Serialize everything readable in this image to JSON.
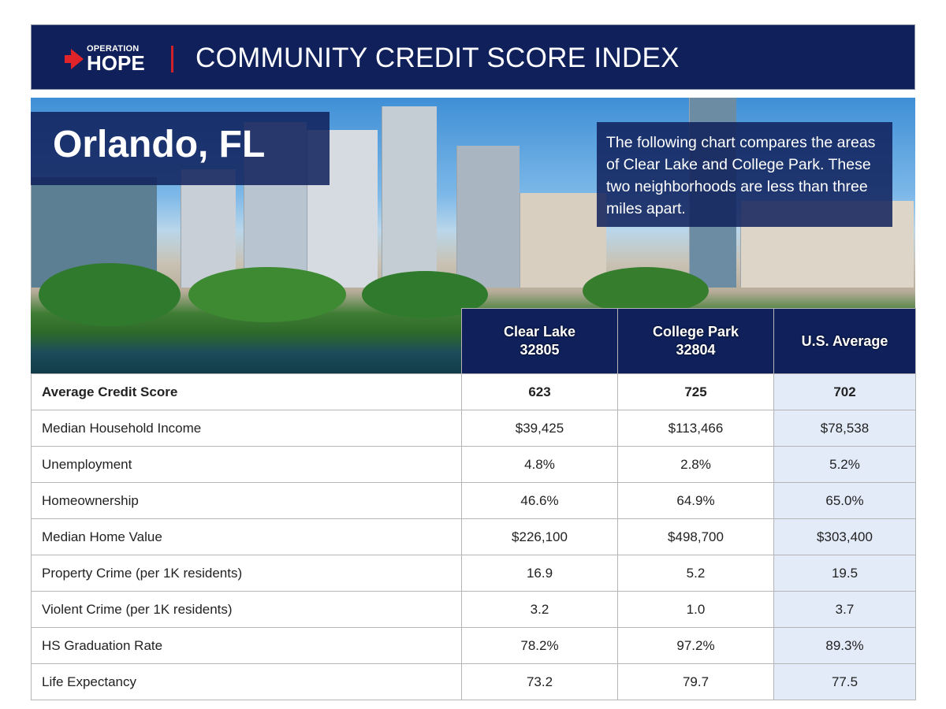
{
  "header": {
    "logo_top": "OPERATION",
    "logo_bottom": "HOPE",
    "title": "COMMUNITY CREDIT SCORE INDEX"
  },
  "hero": {
    "city": "Orlando, FL",
    "description": "The following chart compares the areas of Clear Lake and College Park. These two neighborhoods are less than three miles apart."
  },
  "colors": {
    "navy": "#0f205a",
    "accent_red": "#d0202a",
    "us_column": "#e3ebf9"
  },
  "table": {
    "columns": [
      {
        "name": "Clear Lake",
        "zip": "32805"
      },
      {
        "name": "College Park",
        "zip": "32804"
      },
      {
        "name": "U.S. Average",
        "zip": ""
      }
    ],
    "rows": [
      {
        "label": "Average Credit Score",
        "values": [
          "623",
          "725",
          "702"
        ]
      },
      {
        "label": "Median Household Income",
        "values": [
          "$39,425",
          "$113,466",
          "$78,538"
        ]
      },
      {
        "label": "Unemployment",
        "values": [
          "4.8%",
          "2.8%",
          "5.2%"
        ]
      },
      {
        "label": "Homeownership",
        "values": [
          "46.6%",
          "64.9%",
          "65.0%"
        ]
      },
      {
        "label": "Median Home Value",
        "values": [
          "$226,100",
          "$498,700",
          "$303,400"
        ]
      },
      {
        "label": "Property Crime (per 1K residents)",
        "values": [
          "16.9",
          "5.2",
          "19.5"
        ]
      },
      {
        "label": "Violent Crime (per 1K residents)",
        "values": [
          "3.2",
          "1.0",
          "3.7"
        ]
      },
      {
        "label": "HS Graduation Rate",
        "values": [
          "78.2%",
          "97.2%",
          "89.3%"
        ]
      },
      {
        "label": "Life Expectancy",
        "values": [
          "73.2",
          "79.7",
          "77.5"
        ]
      }
    ]
  }
}
